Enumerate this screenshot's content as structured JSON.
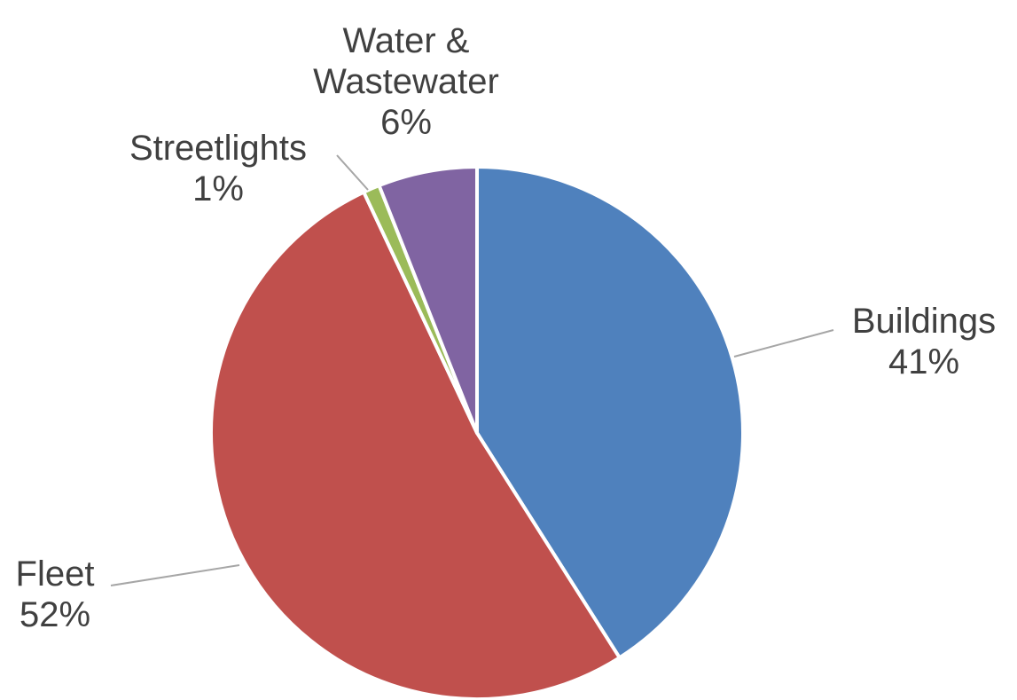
{
  "chart_data": {
    "type": "pie",
    "categories": [
      "Buildings",
      "Fleet",
      "Streetlights",
      "Water & Wastewater"
    ],
    "values": [
      41,
      52,
      1,
      6
    ],
    "value_labels": [
      "41%",
      "52%",
      "1%",
      "6%"
    ],
    "colors": [
      "#4f81bd",
      "#c0504d",
      "#9bbb59",
      "#8064a2"
    ]
  }
}
